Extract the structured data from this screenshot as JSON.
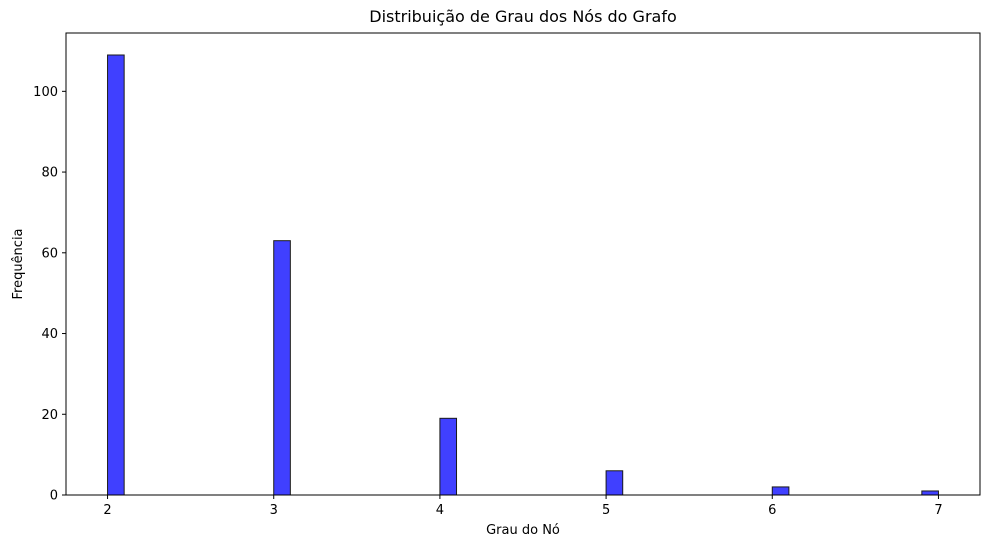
{
  "chart_data": {
    "type": "bar",
    "title": "Distribuição de Grau dos Nós do Grafo",
    "xlabel": "Grau do Nó",
    "ylabel": "Frequência",
    "xlim": [
      1.75,
      7.25
    ],
    "ylim": [
      0,
      114.45
    ],
    "bin_width": 0.1,
    "x_ticks": [
      2,
      3,
      4,
      5,
      6,
      7
    ],
    "y_ticks": [
      0,
      20,
      40,
      60,
      80,
      100
    ],
    "x_tick_labels": [
      "2",
      "3",
      "4",
      "5",
      "6",
      "7"
    ],
    "y_tick_labels": [
      "0",
      "20",
      "40",
      "60",
      "80",
      "100"
    ],
    "bins": [
      {
        "left": 2.0,
        "value": 109
      },
      {
        "left": 3.0,
        "value": 63
      },
      {
        "left": 4.0,
        "value": 19
      },
      {
        "left": 5.0,
        "value": 6
      },
      {
        "left": 6.0,
        "value": 2
      },
      {
        "left": 6.9,
        "value": 1
      }
    ],
    "bar_color": "#0000ff",
    "bar_opacity": 0.75,
    "edge_color": "#1a1a1a"
  }
}
